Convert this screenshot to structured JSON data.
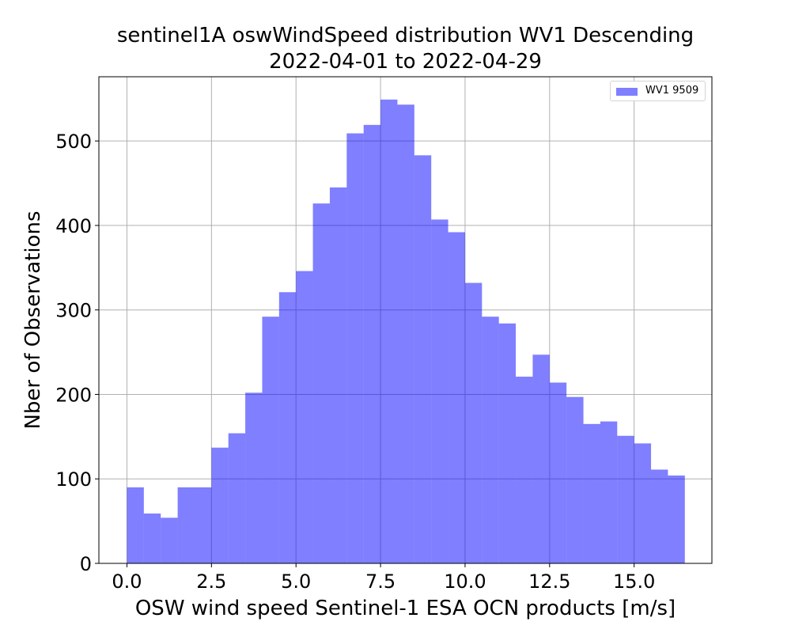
{
  "chart_data": {
    "type": "bar",
    "title": "sentinel1A oswWindSpeed distribution WV1 Descending",
    "subtitle": "2022-04-01 to 2022-04-29",
    "xlabel": "OSW wind speed Sentinel-1 ESA OCN products [m/s]",
    "ylabel": "Nber of Observations",
    "bin_width": 0.5,
    "bin_starts": [
      0.0,
      0.5,
      1.0,
      1.5,
      2.0,
      2.5,
      3.0,
      3.5,
      4.0,
      4.5,
      5.0,
      5.5,
      6.0,
      6.5,
      7.0,
      7.5,
      8.0,
      8.5,
      9.0,
      9.5,
      10.0,
      10.5,
      11.0,
      11.5,
      12.0,
      12.5,
      13.0,
      13.5,
      14.0,
      14.5,
      15.0,
      15.5,
      16.0
    ],
    "series": [
      {
        "name": "WV1 9509",
        "color": "#0000ff",
        "opacity": 0.5,
        "values": [
          90,
          59,
          54,
          90,
          90,
          137,
          154,
          202,
          292,
          321,
          346,
          426,
          445,
          509,
          519,
          549,
          543,
          483,
          407,
          392,
          332,
          292,
          284,
          221,
          247,
          214,
          197,
          165,
          168,
          151,
          142,
          111,
          104
        ]
      }
    ],
    "xlim": [
      -0.83,
      17.3
    ],
    "ylim": [
      0,
      576
    ],
    "xticks": [
      "0.0",
      "2.5",
      "5.0",
      "7.5",
      "10.0",
      "12.5",
      "15.0"
    ],
    "yticks": [
      "0",
      "100",
      "200",
      "300",
      "400",
      "500"
    ],
    "grid": true,
    "legend_position": "top-right"
  }
}
